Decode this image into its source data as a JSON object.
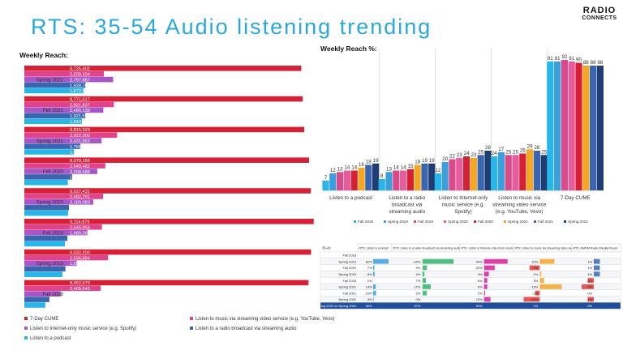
{
  "title": "RTS: 35-54 Audio listening trending",
  "logo": {
    "line1": "RADIO",
    "line2": "CONNECTS"
  },
  "colors": {
    "cume": "#d62035",
    "video": "#e0438c",
    "internet": "#a855c8",
    "broadcast": "#3a66b0",
    "podcast": "#29b5e8",
    "accent": "#28a8e0"
  },
  "chart_data": [
    {
      "type": "bar",
      "orientation": "horizontal",
      "title": "Weekly Reach:",
      "categories": [
        "Spring 2022",
        "Fall 2021",
        "Spring 2021",
        "Fall 2020",
        "Spring 2020",
        "Fall 2019",
        "Spring 2019",
        "Fall 2018"
      ],
      "series": [
        {
          "name": "7-Day CUME",
          "color": "#d62035",
          "values": [
            8725602,
            8771517,
            8815523,
            8970166,
            9027431,
            9114979,
            9032200,
            8952670
          ]
        },
        {
          "name": "Listen to music via streaming video service (e.g. YouTube, Vevo)",
          "color": "#e0438c",
          "values": [
            2508104,
            2821837,
            2922300,
            2549482,
            2482291,
            2446056,
            2636894,
            2405645
          ]
        },
        {
          "name": "Listen to Internet-only music service (e.g. Spotify)",
          "color": "#a855c8",
          "values": [
            2797887,
            2490139,
            2431863,
            2298688,
            2169083,
            1989363,
            1651010,
            1148718
          ]
        },
        {
          "name": "Listen to a radio broadcast via streaming audio",
          "color": "#3a66b0",
          "values": [
            1928768,
            1921597,
            1768382,
            1508407,
            1406130,
            1356174,
            1293185,
            788768
          ]
        },
        {
          "name": "Listen to a podcast",
          "color": "#29b5e8",
          "values": [
            1872983,
            1814255,
            1565810,
            1368522,
            1376261,
            1278335,
            1198259,
            659982
          ]
        }
      ],
      "data_labels": [
        [
          "8,725,602",
          "2,508,104",
          "2,797,887",
          "1,928,768",
          "1,872,983"
        ],
        [
          "8,771,517",
          "2,821,837",
          "2,490,139",
          "1,921,597",
          "1,814,255"
        ],
        [
          "8,815,523",
          "2,922,300",
          "2,431,863",
          "1,768,382",
          "1,565,810"
        ],
        [
          "8,970,166",
          "2,549,482",
          "2,298,688",
          "1,508,407",
          "1,368,522"
        ],
        [
          "9,027,431",
          "2,482,291",
          "2,169,083",
          "1,406,130",
          "1,376,261"
        ],
        [
          "9,114,979",
          "2,446,056",
          "1,989,363",
          "1,356,174",
          "1,278,335"
        ],
        [
          "9,032,200",
          "2,636,894",
          "1,651,010",
          "1,293,185",
          "1,198,259"
        ],
        [
          "8,952,670",
          "2,405,645",
          "1,148,718",
          "788,768",
          "659,982"
        ]
      ],
      "xlim": [
        0,
        9200000
      ]
    },
    {
      "type": "bar",
      "title": "Weekly Reach %:",
      "categories": [
        "Listen to a podcast",
        "Listen to a radio broadcast via streaming audio",
        "Listen to Internet-only music service (e.g. Spotify)",
        "Listen to music via streaming video service (e.g. YouTube, Vevo)",
        "7-Day CUME"
      ],
      "category_lines": [
        [
          "Listen to a podcast"
        ],
        [
          "Listen to a radio",
          "broadcast via",
          "streaming audio"
        ],
        [
          "Listen to Internet-only",
          "music service (e.g.",
          "Spotify)"
        ],
        [
          "Listen to music via",
          "streaming video service",
          "(e.g. YouTube, Vevo)"
        ],
        [
          "7-Day CUME"
        ]
      ],
      "series": [
        {
          "name": "Fall 2018",
          "color": "#29b5e8",
          "values": [
            7,
            8,
            12,
            24,
            91
          ]
        },
        {
          "name": "Spring 2019",
          "color": "#3aa0dc",
          "values": [
            12,
            13,
            20,
            27,
            91
          ]
        },
        {
          "name": "Fall 2019",
          "color": "#d84a8a",
          "values": [
            13,
            14,
            22,
            25,
            92
          ]
        },
        {
          "name": "Spring 2020",
          "color": "#e65c9c",
          "values": [
            14,
            14,
            23,
            25,
            91
          ]
        },
        {
          "name": "Fall 2020",
          "color": "#d62035",
          "values": [
            14,
            15,
            24,
            26,
            90
          ]
        },
        {
          "name": "Spring 2021",
          "color": "#f5a623",
          "values": [
            16,
            18,
            23,
            29,
            88
          ]
        },
        {
          "name": "Fall 2021",
          "color": "#3a66b0",
          "values": [
            18,
            19,
            25,
            28,
            88
          ]
        },
        {
          "name": "Spring 2022",
          "color": "#1f3d73",
          "values": [
            19,
            19,
            28,
            25,
            88
          ]
        }
      ],
      "ylim": [
        0,
        100
      ]
    },
    {
      "type": "table",
      "corner": "35-44",
      "columns": [
        "RTS: Listen to podcast",
        "RTS: Listen to a radio broadcast via streaming audio",
        "RTS: Listen to Internet-only music service",
        "RTS: Listen to music via streaming video service",
        "RTS: AM/FM Radio Weekly Reach"
      ],
      "rows": [
        {
          "label": "Fall 2018",
          "values": [
            "",
            "",
            "",
            "",
            ""
          ]
        },
        {
          "label": "Spring 2019",
          "values": [
            "82%",
            "64%",
            "44%",
            "10%",
            "1%"
          ]
        },
        {
          "label": "Fall 2019",
          "values": [
            "7%",
            "9%",
            "20%",
            "-7%",
            "1%"
          ]
        },
        {
          "label": "Spring 2020",
          "values": [
            "8%",
            "4%",
            "9%",
            "1%",
            "1%"
          ]
        },
        {
          "label": "Fall 2020",
          "values": [
            "-1%",
            "7%",
            "6%",
            "3%",
            "-1%"
          ]
        },
        {
          "label": "Spring 2021",
          "values": [
            "14%",
            "17%",
            "6%",
            "15%",
            "-2%"
          ]
        },
        {
          "label": "Fall 2021",
          "values": [
            "16%",
            "9%",
            "2%",
            "-3%",
            "0%"
          ]
        },
        {
          "label": "Spring 2022",
          "values": [
            "3%",
            "0%",
            "12%",
            "-11%",
            "-1%"
          ]
        },
        {
          "label": "Spring 2022 vs Spring 2020",
          "values": [
            "36%",
            "37%",
            "29%",
            "1%",
            "-3%"
          ]
        }
      ],
      "bar_values": [
        [
          null,
          null,
          null,
          null,
          null
        ],
        [
          82,
          64,
          44,
          10,
          1
        ],
        [
          7,
          9,
          20,
          -7,
          1
        ],
        [
          8,
          4,
          9,
          1,
          1
        ],
        [
          -1,
          7,
          6,
          3,
          -1
        ],
        [
          14,
          17,
          6,
          15,
          -2
        ],
        [
          16,
          9,
          2,
          -3,
          0
        ],
        [
          3,
          0,
          12,
          -11,
          -1
        ],
        [
          36,
          37,
          29,
          1,
          -3
        ]
      ]
    }
  ]
}
